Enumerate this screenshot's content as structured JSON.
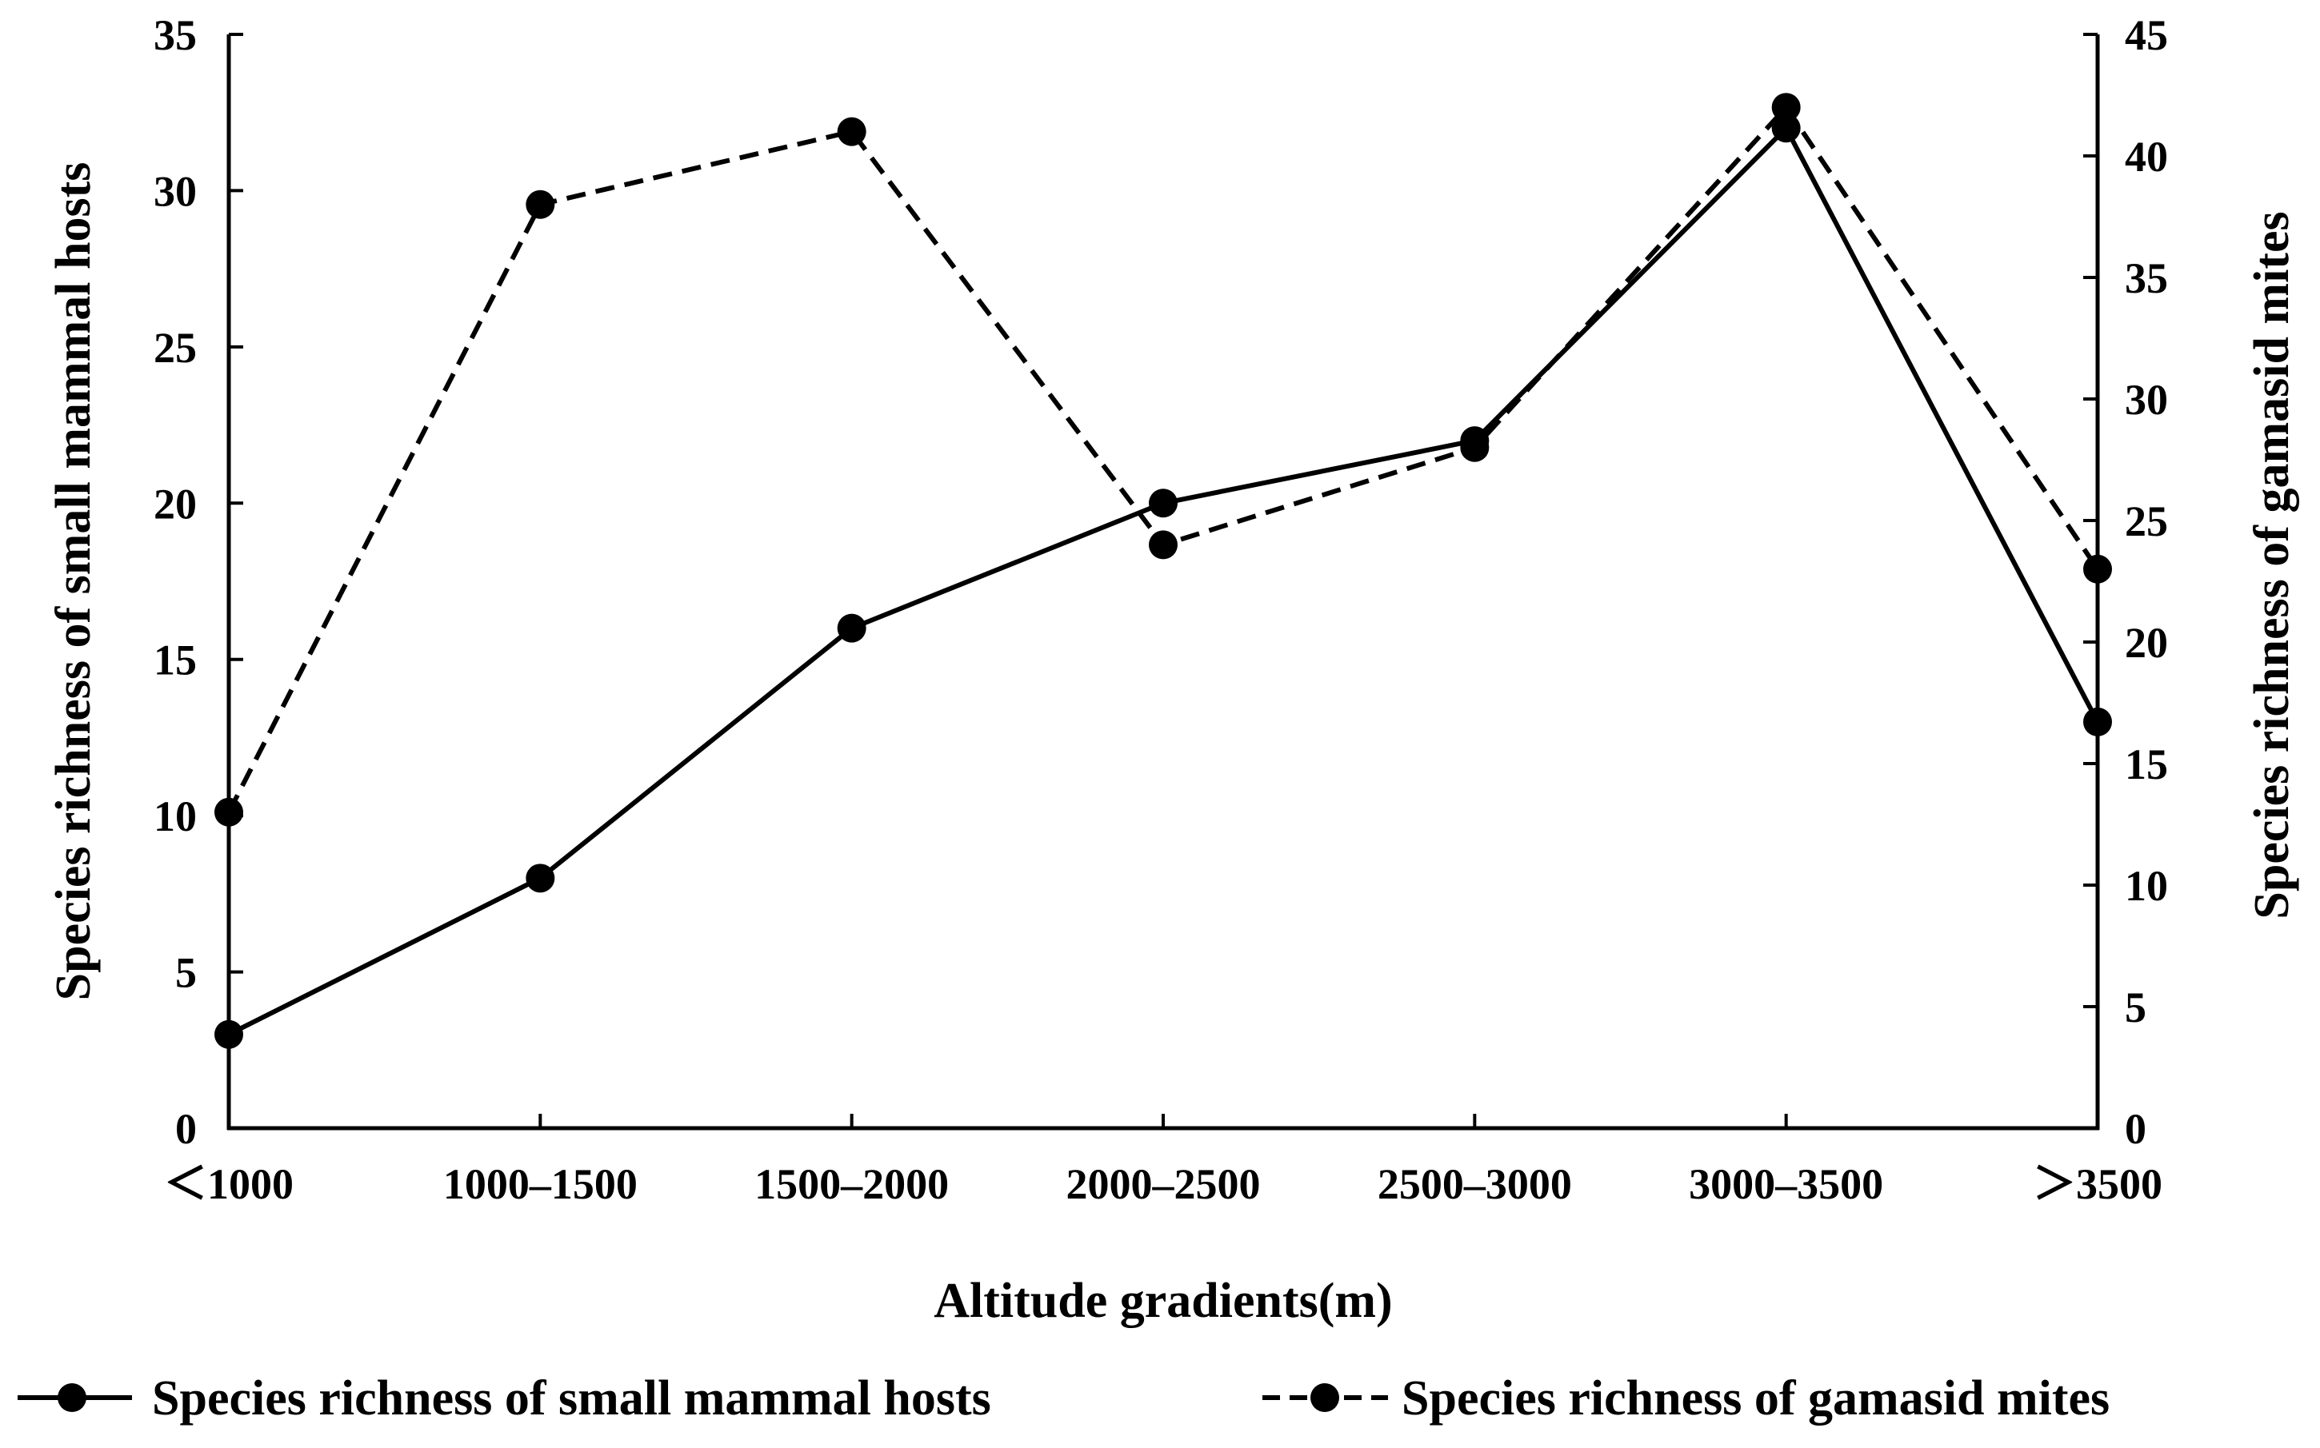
{
  "chart_data": {
    "type": "line",
    "categories": [
      "<1000",
      "1000–1500",
      "1500–2000",
      "2000–2500",
      "2500–3000",
      "3000–3500",
      ">3500"
    ],
    "category_labels": [
      "＜1000",
      "1000–1500",
      "1500–2000",
      "2000–2500",
      "2500–3000",
      "3000–3500",
      "＞3500"
    ],
    "xlabel": "Altitude gradients(m)",
    "ylabel_left": "Species richness of small mammal hosts",
    "ylabel_right": "Species richness of gamasid mites",
    "ylim_left": [
      0,
      35
    ],
    "yticks_left": [
      0,
      5,
      10,
      15,
      20,
      25,
      30,
      35
    ],
    "ylim_right": [
      0,
      45
    ],
    "yticks_right": [
      0,
      5,
      10,
      15,
      20,
      25,
      30,
      35,
      40,
      45
    ],
    "grid": false,
    "legend_position": "bottom",
    "series": [
      {
        "name": "Species richness of small mammal hosts",
        "axis": "left",
        "line_style": "solid",
        "marker": "circle",
        "values": [
          3,
          8,
          16,
          20,
          22,
          32,
          13
        ]
      },
      {
        "name": "Species richness of gamasid mites",
        "axis": "right",
        "line_style": "dashed",
        "marker": "circle",
        "values": [
          13,
          38,
          41,
          24,
          28,
          42,
          23
        ]
      }
    ],
    "colors": {
      "line": "#000000",
      "background": "#ffffff"
    }
  }
}
